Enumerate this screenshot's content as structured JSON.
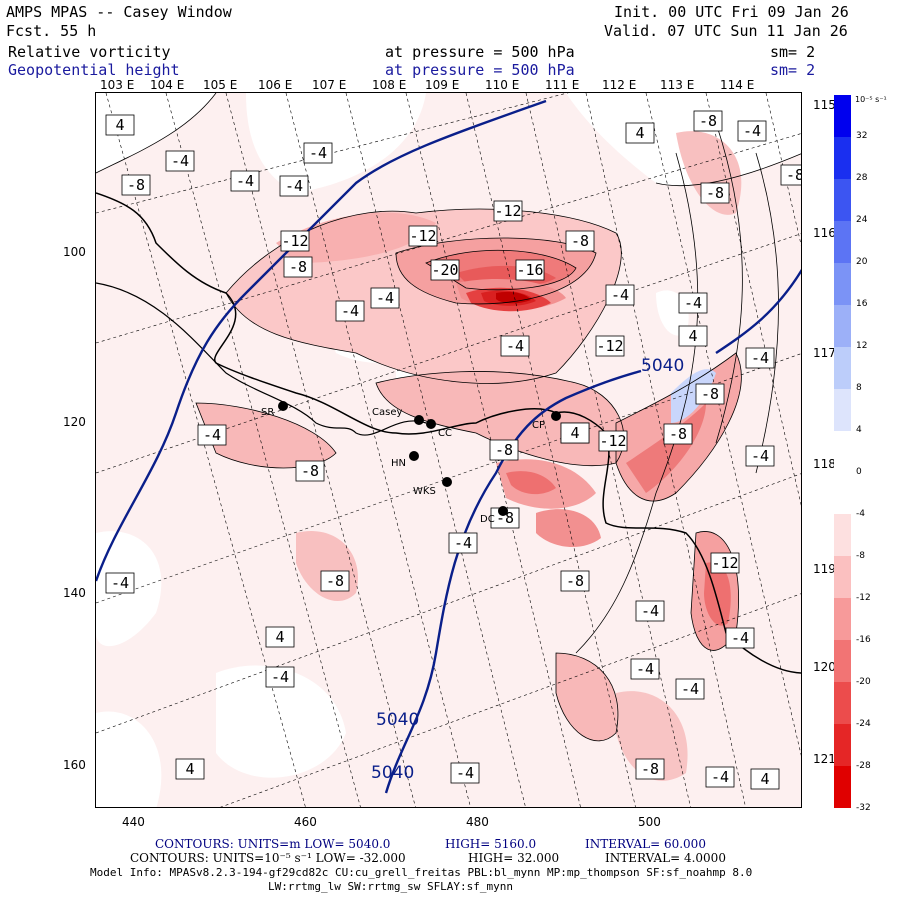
{
  "header": {
    "title": "AMPS MPAS -- Casey Window",
    "fcst": "Fcst.    55 h",
    "init": "Init. 00 UTC Fri 09 Jan 26",
    "valid": "Valid. 07 UTC Sun 11 Jan 26",
    "field1": "Relative vorticity",
    "field2": "Geopotential height",
    "level1": "at pressure =  500 hPa",
    "level2": "at pressure =  500 hPa",
    "sm1": "sm= 2",
    "sm2": "sm= 2"
  },
  "colorbar": {
    "units": "10⁻⁵ s⁻¹",
    "ticks": [
      "32",
      "28",
      "24",
      "20",
      "16",
      "12",
      "8",
      "4",
      "0",
      "-4",
      "-8",
      "-12",
      "-16",
      "-20",
      "-24",
      "-28",
      "-32"
    ],
    "colors": [
      "#0000ee",
      "#1a2ff0",
      "#3c55f2",
      "#5c74f4",
      "#7b93f6",
      "#9cb0f8",
      "#bccdfa",
      "#dde4fc",
      "#ffffff",
      "#ffffff",
      "#fde0e0",
      "#fbc0c0",
      "#f79a9a",
      "#f27474",
      "#ec4c4c",
      "#e52626",
      "#e00000"
    ]
  },
  "axes": {
    "top_lon": [
      "103 E",
      "104 E",
      "105 E",
      "106 E",
      "107 E",
      "108 E",
      "109 E",
      "110 E",
      "111 E",
      "112 E",
      "113 E",
      "114 E"
    ],
    "right_lon": [
      "115 E",
      "116 E",
      "117 E",
      "118 E",
      "119 E",
      "120 E",
      "121 E"
    ],
    "left_y": [
      "100",
      "120",
      "140",
      "160"
    ],
    "bottom_x": [
      "440",
      "460",
      "480",
      "500"
    ]
  },
  "map": {
    "contour_labels": [
      {
        "text": "4"
      },
      {
        "text": "-4"
      },
      {
        "text": "-4"
      },
      {
        "text": "-4"
      },
      {
        "text": "-8"
      },
      {
        "text": "-4"
      },
      {
        "text": "4"
      },
      {
        "text": "-8"
      },
      {
        "text": "-4"
      },
      {
        "text": "-8"
      },
      {
        "text": "-8"
      },
      {
        "text": "-12"
      },
      {
        "text": "-8"
      },
      {
        "text": "-12"
      },
      {
        "text": "-12"
      },
      {
        "text": "-4"
      },
      {
        "text": "-20"
      },
      {
        "text": "-16"
      },
      {
        "text": "-8"
      },
      {
        "text": "-4"
      },
      {
        "text": "-4"
      },
      {
        "text": "-4"
      },
      {
        "text": "-4"
      },
      {
        "text": "-12"
      },
      {
        "text": "4"
      },
      {
        "text": "-4"
      },
      {
        "text": "-8"
      },
      {
        "text": "-12"
      },
      {
        "text": "-8"
      },
      {
        "text": "-8"
      },
      {
        "text": "-8"
      },
      {
        "text": "-4"
      },
      {
        "text": "-8"
      },
      {
        "text": "-4"
      },
      {
        "text": "-12"
      },
      {
        "text": "-8"
      },
      {
        "text": "-4"
      },
      {
        "text": "-4"
      },
      {
        "text": "-8"
      },
      {
        "text": "-8"
      },
      {
        "text": "-4"
      },
      {
        "text": "4"
      },
      {
        "text": "-4"
      },
      {
        "text": "-4"
      },
      {
        "text": "-4"
      },
      {
        "text": "-4"
      },
      {
        "text": "-8"
      },
      {
        "text": "-4"
      },
      {
        "text": "-4"
      },
      {
        "text": "4"
      },
      {
        "text": "4"
      },
      {
        "text": "4"
      }
    ],
    "height_labels": [
      "5040",
      "5040",
      "5040"
    ],
    "stations": [
      "SR",
      "Casey",
      "CC",
      "HN",
      "WKS",
      "DC",
      "CP"
    ]
  },
  "footer": {
    "line1_a": "CONTOURS:  UNITS=m  LOW=  5040.0",
    "line1_b": "HIGH=  5160.0",
    "line1_c": "INTERVAL=  60.000",
    "line2_a": "CONTOURS:  UNITS=10⁻⁵ s⁻¹  LOW= -32.000",
    "line2_b": "HIGH=  32.000",
    "line2_c": "INTERVAL=  4.0000",
    "line3": "Model Info: MPASv8.2.3-194-gf29cd82c CU:cu_grell_freitas PBL:bl_mynn MP:mp_thompson SF:sf_noahmp 8.0",
    "line4": "LW:rrtmg_lw SW:rrtmg_sw SFLAY:sf_mynn"
  }
}
